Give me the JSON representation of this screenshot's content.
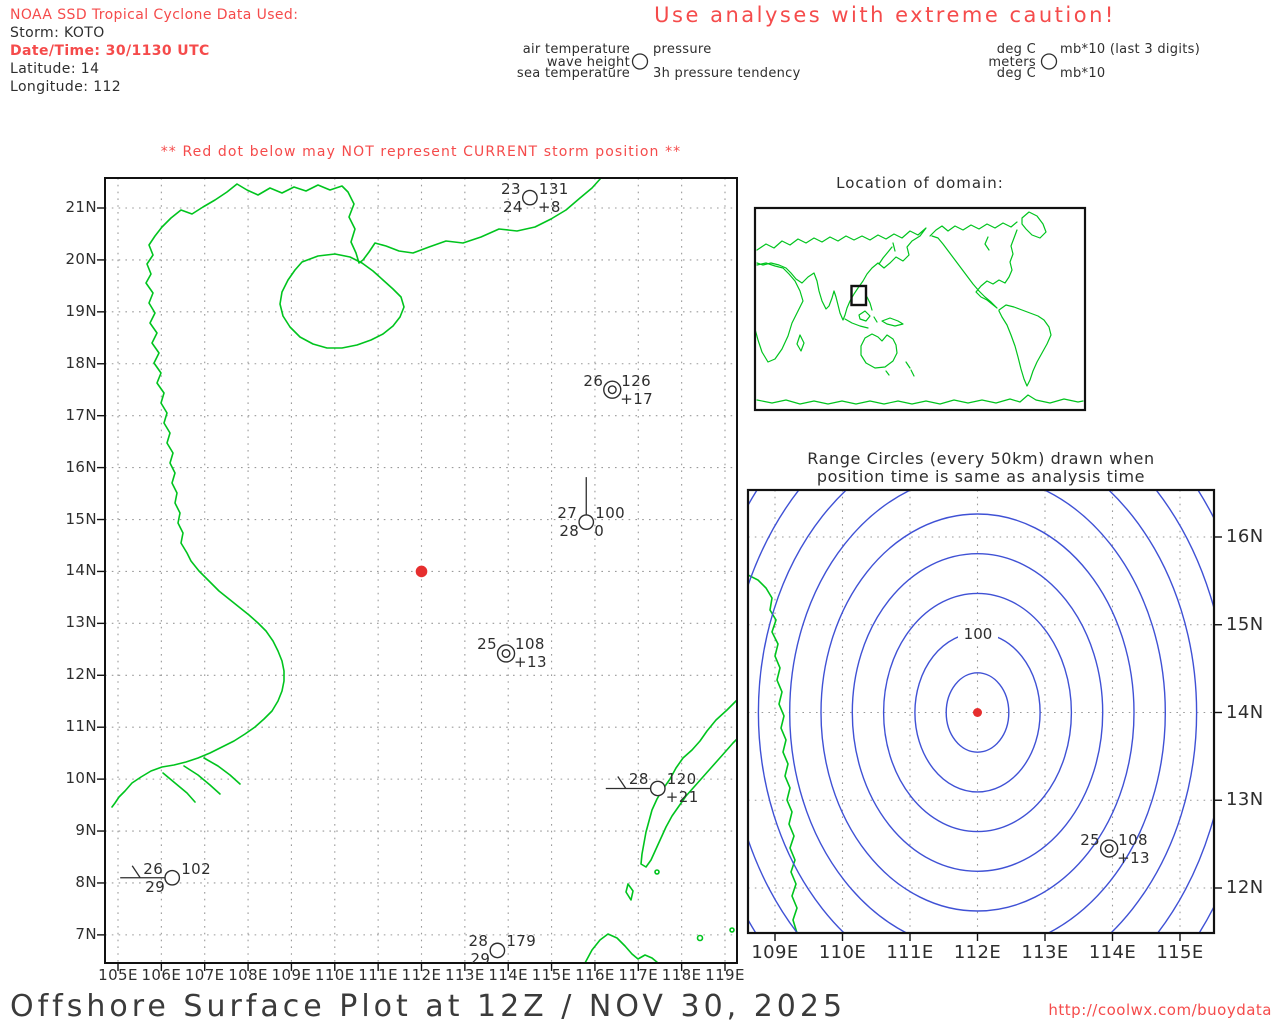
{
  "header": {
    "noaa_line": "NOAA SSD Tropical Cyclone Data Used:",
    "storm": "Storm: KOTO",
    "datetime": "Date/Time: 30/1130 UTC",
    "latitude": "Latitude: 14",
    "longitude": "Longitude: 112",
    "caution": "Use analyses with extreme caution!"
  },
  "station_legend": {
    "left": {
      "top_left": "air temperature",
      "mid_left": "wave height",
      "bottom_left": "sea temperature",
      "top_right": "pressure",
      "bottom_right": "3h pressure tendency"
    },
    "right": {
      "top_left": "deg C",
      "mid_left": "meters",
      "bottom_left": "deg C",
      "top_right": "mb*10 (last 3 digits)",
      "bottom_right": "mb*10"
    }
  },
  "warning": "** Red dot below may NOT represent CURRENT storm position **",
  "main_map": {
    "x_ticks": [
      "105E",
      "106E",
      "107E",
      "108E",
      "109E",
      "110E",
      "111E",
      "112E",
      "113E",
      "114E",
      "115E",
      "116E",
      "117E",
      "118E",
      "119E"
    ],
    "y_ticks": [
      "21N",
      "20N",
      "19N",
      "18N",
      "17N",
      "16N",
      "15N",
      "14N",
      "13N",
      "12N",
      "11N",
      "10N",
      "9N",
      "8N",
      "7N"
    ],
    "storm_position": {
      "lon": 112,
      "lat": 14
    },
    "stations": [
      {
        "lon": 114.5,
        "lat": 21.2,
        "air": "23",
        "sea": "24",
        "pressure": "131",
        "tendency": "+8",
        "circle": "single",
        "barb": "none"
      },
      {
        "lon": 116.4,
        "lat": 17.5,
        "air": "26",
        "sea": "",
        "pressure": "126",
        "tendency": "+17",
        "circle": "double",
        "barb": "none"
      },
      {
        "lon": 115.8,
        "lat": 14.95,
        "air": "27",
        "sea": "28",
        "pressure": "100",
        "tendency": "0",
        "circle": "single",
        "barb": "shaft-up"
      },
      {
        "lon": 113.95,
        "lat": 12.42,
        "air": "25",
        "sea": "",
        "pressure": "108",
        "tendency": "+13",
        "circle": "double",
        "barb": "none"
      },
      {
        "lon": 117.45,
        "lat": 9.82,
        "air": "28",
        "sea": "",
        "pressure": "120",
        "tendency": "+21",
        "circle": "single",
        "barb": "barb-left"
      },
      {
        "lon": 106.25,
        "lat": 8.1,
        "air": "26",
        "sea": "29",
        "pressure": "102",
        "tendency": "",
        "circle": "single",
        "barb": "barb-left"
      },
      {
        "lon": 113.75,
        "lat": 6.7,
        "air": "28",
        "sea": "29",
        "pressure": "179",
        "tendency": "",
        "circle": "single",
        "barb": "none"
      }
    ]
  },
  "inset_map": {
    "title": "Location of domain:"
  },
  "range_map": {
    "title_line1": "Range Circles (every 50km) drawn when",
    "title_line2": "position time is same as analysis time",
    "x_ticks": [
      "109E",
      "110E",
      "111E",
      "112E",
      "113E",
      "114E",
      "115E"
    ],
    "y_ticks": [
      "16N",
      "15N",
      "14N",
      "13N",
      "12N"
    ],
    "contour_label": "100",
    "circle_spacing_km": 50,
    "center": {
      "lon": 112,
      "lat": 14
    },
    "stations": [
      {
        "lon": 113.95,
        "lat": 12.45,
        "air": "25",
        "sea": "",
        "pressure": "108",
        "tendency": "+13",
        "circle": "double",
        "barb": "none"
      }
    ]
  },
  "footer": {
    "title": "Offshore Surface Plot at 12Z / NOV 30, 2025",
    "url": "http://coolwx.com/buoydata"
  },
  "colors": {
    "coastline_green": "#00c41e",
    "caution_red": "#f54b4b",
    "storm_dot_red": "#e62e2e",
    "range_circle_blue": "#3f51d5",
    "text_dark": "#2e2e2e",
    "grid_gray": "#9a9a9a"
  }
}
